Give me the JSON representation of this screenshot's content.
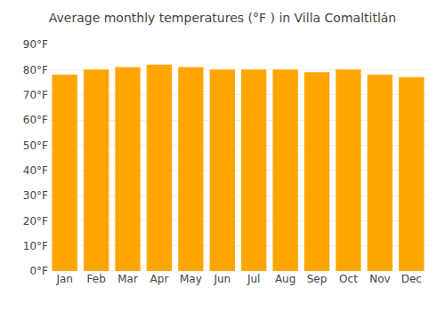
{
  "chart_data": {
    "type": "bar",
    "title": "Average monthly temperatures (°F ) in Villa Comaltitlán",
    "categories": [
      "Jan",
      "Feb",
      "Mar",
      "Apr",
      "May",
      "Jun",
      "Jul",
      "Aug",
      "Sep",
      "Oct",
      "Nov",
      "Dec"
    ],
    "values": [
      78,
      80,
      81,
      82,
      81,
      80,
      80,
      80,
      79,
      80,
      78,
      77
    ],
    "color": "#FFA500",
    "ylim": [
      0,
      90
    ],
    "yticks": [
      {
        "value": 0,
        "label": "0°F"
      },
      {
        "value": 10,
        "label": "10°F"
      },
      {
        "value": 20,
        "label": "20°F"
      },
      {
        "value": 30,
        "label": "30°F"
      },
      {
        "value": 40,
        "label": "40°F"
      },
      {
        "value": 50,
        "label": "50°F"
      },
      {
        "value": 60,
        "label": "60°F"
      },
      {
        "value": 70,
        "label": "70°F"
      },
      {
        "value": 80,
        "label": "80°F"
      },
      {
        "value": 90,
        "label": "90°F"
      }
    ],
    "grid": true
  }
}
